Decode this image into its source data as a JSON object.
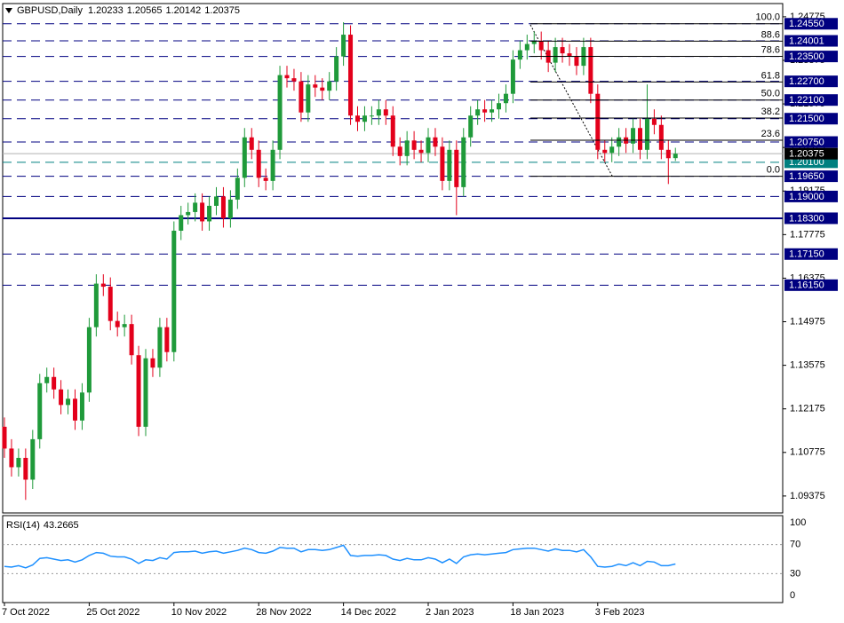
{
  "chart_data": [
    {
      "type": "candlestick",
      "symbol": "GBPUSD,Daily",
      "categories": [
        "7 Oct 2022",
        null,
        null,
        null,
        null,
        null,
        null,
        null,
        null,
        null,
        null,
        null,
        "25 Oct 2022",
        null,
        null,
        null,
        null,
        null,
        null,
        null,
        null,
        null,
        null,
        null,
        "10 Nov 2022",
        null,
        null,
        null,
        null,
        null,
        null,
        null,
        null,
        null,
        null,
        null,
        "28 Nov 2022",
        null,
        null,
        null,
        null,
        null,
        null,
        null,
        null,
        null,
        null,
        null,
        "14 Dec 2022",
        null,
        null,
        null,
        null,
        null,
        null,
        null,
        null,
        null,
        null,
        null,
        "2 Jan 2023",
        null,
        null,
        null,
        null,
        null,
        null,
        null,
        null,
        null,
        null,
        null,
        "18 Jan 2023",
        null,
        null,
        null,
        null,
        null,
        null,
        null,
        null,
        null,
        null,
        null,
        "3 Feb 2023",
        null,
        null,
        null,
        null,
        null,
        null,
        null,
        null,
        null,
        null,
        null
      ],
      "open": [
        1.116,
        1.109,
        1.103,
        1.106,
        1.099,
        1.112,
        1.13,
        1.132,
        1.128,
        1.123,
        1.125,
        1.118,
        1.127,
        1.148,
        1.162,
        1.161,
        1.15,
        1.148,
        1.149,
        1.139,
        1.116,
        1.138,
        1.135,
        1.148,
        1.14,
        1.179,
        1.184,
        1.185,
        1.188,
        1.182,
        1.187,
        1.19,
        1.183,
        1.189,
        1.196,
        1.209,
        1.205,
        1.196,
        1.195,
        1.205,
        1.229,
        1.228,
        1.227,
        1.217,
        1.226,
        1.225,
        1.224,
        1.227,
        1.235,
        1.242,
        1.216,
        1.214,
        1.216,
        1.216,
        1.218,
        1.216,
        1.206,
        1.203,
        1.208,
        1.205,
        1.204,
        1.209,
        1.206,
        1.195,
        1.205,
        1.193,
        1.209,
        1.216,
        1.218,
        1.217,
        1.218,
        1.22,
        1.223,
        1.234,
        1.237,
        1.239,
        1.24,
        1.237,
        1.233,
        1.238,
        1.236,
        1.235,
        1.232,
        1.238,
        1.223,
        1.205,
        1.204,
        1.206,
        1.209,
        1.207,
        1.212,
        1.205,
        1.215,
        1.213,
        1.205,
        1.20233
      ],
      "high": [
        1.119,
        1.112,
        1.109,
        1.109,
        1.115,
        1.133,
        1.135,
        1.135,
        1.131,
        1.128,
        1.128,
        1.13,
        1.151,
        1.165,
        1.165,
        1.164,
        1.153,
        1.152,
        1.152,
        1.142,
        1.141,
        1.141,
        1.151,
        1.151,
        1.182,
        1.187,
        1.188,
        1.191,
        1.191,
        1.19,
        1.193,
        1.193,
        1.192,
        1.199,
        1.212,
        1.212,
        1.208,
        1.199,
        1.208,
        1.232,
        1.232,
        1.231,
        1.23,
        1.229,
        1.229,
        1.228,
        1.23,
        1.238,
        1.246,
        1.245,
        1.219,
        1.219,
        1.219,
        1.221,
        1.221,
        1.219,
        1.209,
        1.211,
        1.211,
        1.208,
        1.212,
        1.212,
        1.209,
        1.208,
        1.208,
        1.212,
        1.219,
        1.221,
        1.221,
        1.221,
        1.223,
        1.226,
        1.237,
        1.24,
        1.242,
        1.243,
        1.243,
        1.24,
        1.241,
        1.241,
        1.239,
        1.238,
        1.241,
        1.241,
        1.226,
        1.208,
        1.209,
        1.212,
        1.212,
        1.215,
        1.215,
        1.226,
        1.218,
        1.216,
        1.208,
        1.20565
      ],
      "low": [
        1.106,
        1.1,
        1.1,
        1.0925,
        1.096,
        1.109,
        1.127,
        1.125,
        1.12,
        1.12,
        1.115,
        1.115,
        1.124,
        1.145,
        1.158,
        1.147,
        1.145,
        1.145,
        1.136,
        1.113,
        1.113,
        1.132,
        1.132,
        1.137,
        1.137,
        1.176,
        1.181,
        1.182,
        1.179,
        1.179,
        1.184,
        1.18,
        1.18,
        1.186,
        1.193,
        1.202,
        1.193,
        1.192,
        1.192,
        1.202,
        1.225,
        1.224,
        1.214,
        1.214,
        1.222,
        1.221,
        1.221,
        1.224,
        1.232,
        1.213,
        1.211,
        1.211,
        1.213,
        1.213,
        1.213,
        1.203,
        1.2,
        1.2,
        1.202,
        1.201,
        1.201,
        1.203,
        1.192,
        1.192,
        1.184,
        1.19,
        1.206,
        1.213,
        1.214,
        1.214,
        1.215,
        1.217,
        1.22,
        1.231,
        1.234,
        1.236,
        1.234,
        1.23,
        1.23,
        1.233,
        1.232,
        1.229,
        1.229,
        1.22,
        1.202,
        1.201,
        1.201,
        1.203,
        1.204,
        1.204,
        1.202,
        1.202,
        1.21,
        1.202,
        1.194,
        1.20142
      ],
      "close": [
        1.109,
        1.103,
        1.106,
        1.099,
        1.112,
        1.13,
        1.132,
        1.128,
        1.123,
        1.125,
        1.118,
        1.127,
        1.148,
        1.162,
        1.161,
        1.15,
        1.148,
        1.149,
        1.139,
        1.116,
        1.138,
        1.135,
        1.148,
        1.14,
        1.179,
        1.184,
        1.185,
        1.188,
        1.182,
        1.187,
        1.19,
        1.183,
        1.189,
        1.196,
        1.209,
        1.205,
        1.196,
        1.195,
        1.205,
        1.229,
        1.228,
        1.227,
        1.217,
        1.226,
        1.225,
        1.224,
        1.227,
        1.235,
        1.242,
        1.216,
        1.214,
        1.216,
        1.216,
        1.218,
        1.216,
        1.206,
        1.203,
        1.208,
        1.205,
        1.204,
        1.209,
        1.206,
        1.195,
        1.205,
        1.193,
        1.209,
        1.216,
        1.218,
        1.217,
        1.218,
        1.22,
        1.223,
        1.234,
        1.237,
        1.239,
        1.24,
        1.237,
        1.233,
        1.238,
        1.236,
        1.235,
        1.232,
        1.238,
        1.223,
        1.205,
        1.204,
        1.206,
        1.209,
        1.207,
        1.212,
        1.205,
        1.215,
        1.213,
        1.205,
        1.2023,
        1.20375
      ],
      "up_color": "#1f9a3a",
      "down_color": "#e3001b",
      "ylim": [
        1.0883,
        1.252
      ],
      "yticks": [
        1.09375,
        1.10775,
        1.12175,
        1.13575,
        1.14975,
        1.16375,
        1.17775,
        1.19175,
        1.20575,
        1.21975,
        1.23375,
        1.24775
      ],
      "levels": [
        {
          "value": 1.2455,
          "label": "1.24550",
          "color": "#000080",
          "line": "dashed"
        },
        {
          "value": 1.24001,
          "label": "1.24001",
          "color": "#000080",
          "line": "dashed"
        },
        {
          "value": 1.235,
          "label": "1.23500",
          "color": "#000080",
          "line": "dashed"
        },
        {
          "value": 1.227,
          "label": "1.22700",
          "color": "#000080",
          "line": "dashed"
        },
        {
          "value": 1.221,
          "label": "1.22100",
          "color": "#000080",
          "line": "dashed"
        },
        {
          "value": 1.215,
          "label": "1.21500",
          "color": "#000080",
          "line": "dashed"
        },
        {
          "value": 1.2075,
          "label": "1.20750",
          "color": "#000080",
          "line": "dashed"
        },
        {
          "value": 1.201,
          "label": "1.20100",
          "color": "#008080",
          "line": "dashed"
        },
        {
          "value": 1.1965,
          "label": "1.19650",
          "color": "#000080",
          "line": "dashed"
        },
        {
          "value": 1.19,
          "label": "1.19000",
          "color": "#000080",
          "line": "dashed"
        },
        {
          "value": 1.183,
          "label": "1.18300",
          "color": "#000080",
          "line": "solid"
        },
        {
          "value": 1.1715,
          "label": "1.17150",
          "color": "#000080",
          "line": "dashed"
        },
        {
          "value": 1.1615,
          "label": "1.16150",
          "color": "#000080",
          "line": "dashed"
        }
      ],
      "fibo": {
        "low": 1.1965,
        "high": 1.2455,
        "levels": [
          {
            "value": 100,
            "label": "100.0"
          },
          88.6,
          78.6,
          61.8,
          {
            "value": 50,
            "label": "50.0"
          },
          38.2,
          23.6,
          {
            "value": 0,
            "label": "0.0"
          }
        ]
      }
    },
    {
      "type": "line",
      "title": "RSI(14)",
      "color": "#1e90ff",
      "values": [
        40,
        39,
        41,
        38,
        42,
        51,
        52,
        50,
        48,
        49,
        46,
        49,
        55,
        59,
        58,
        54,
        53,
        53,
        50,
        44,
        49,
        48,
        52,
        50,
        59,
        60,
        60,
        61,
        58,
        60,
        61,
        58,
        60,
        62,
        65,
        63,
        59,
        58,
        61,
        66,
        65,
        65,
        60,
        63,
        63,
        62,
        63,
        66,
        69,
        55,
        54,
        55,
        55,
        56,
        55,
        50,
        48,
        51,
        49,
        49,
        52,
        50,
        45,
        50,
        44,
        53,
        56,
        57,
        56,
        57,
        58,
        59,
        63,
        64,
        65,
        65,
        63,
        61,
        64,
        62,
        62,
        60,
        63,
        53,
        40,
        39,
        40,
        43,
        41,
        45,
        41,
        47,
        46,
        41,
        41,
        43.2665
      ],
      "ylim": [
        0,
        100
      ],
      "yticks": [
        0,
        30,
        70,
        100
      ]
    }
  ]
}
